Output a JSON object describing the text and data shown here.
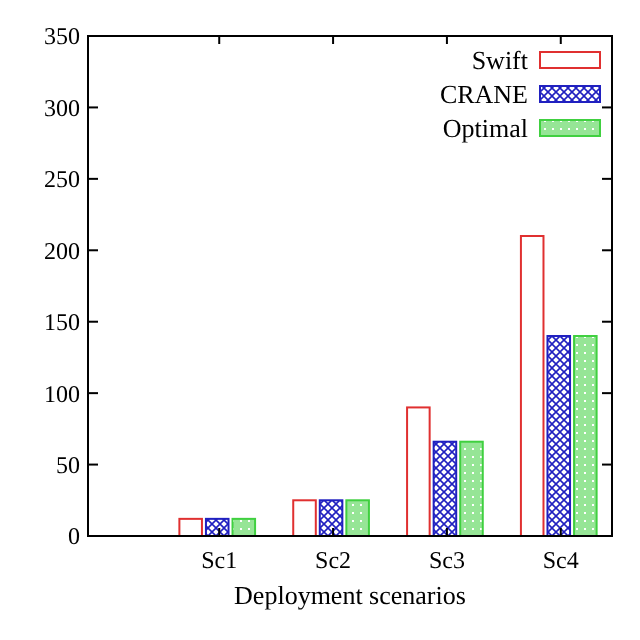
{
  "chart_data": {
    "type": "bar",
    "xlabel": "Deployment scenarios",
    "categories": [
      "Sc1",
      "Sc2",
      "Sc3",
      "Sc4"
    ],
    "series": [
      {
        "name": "Swift",
        "color": "#e03030",
        "values": [
          12,
          25,
          90,
          210
        ]
      },
      {
        "name": "CRANE",
        "color": "#2020c0",
        "values": [
          12,
          25,
          66,
          140
        ]
      },
      {
        "name": "Optimal",
        "color": "#40d040",
        "values": [
          12,
          25,
          66,
          140
        ]
      }
    ],
    "ylim": [
      0,
      350
    ],
    "yticks": [
      0,
      50,
      100,
      150,
      200,
      250,
      300,
      350
    ],
    "legend": "top right"
  }
}
